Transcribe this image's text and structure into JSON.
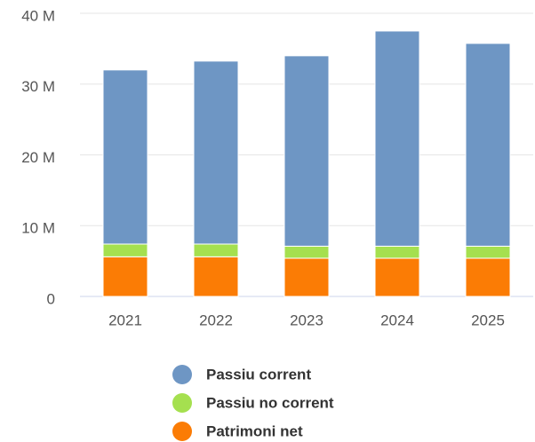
{
  "chart_data": {
    "type": "stacked_bar",
    "categories": [
      "2021",
      "2022",
      "2023",
      "2024",
      "2025"
    ],
    "series": [
      {
        "name": "Passiu corrent",
        "color": "#6e96c4",
        "values": [
          24.6,
          25.85,
          26.9,
          30.4,
          28.65
        ]
      },
      {
        "name": "Passiu no corrent",
        "color": "#a5e04f",
        "values": [
          1.8,
          1.8,
          1.7,
          1.7,
          1.7
        ]
      },
      {
        "name": "Patrimoni net",
        "color": "#fb7c05",
        "values": [
          5.6,
          5.6,
          5.4,
          5.4,
          5.4
        ]
      }
    ],
    "ylim": [
      0,
      40
    ],
    "yticks": [
      0,
      {
        "value": 10,
        "label": "10 M"
      },
      {
        "value": 20,
        "label": "20 M"
      },
      {
        "value": 30,
        "label": "30 M"
      },
      {
        "value": 40,
        "label": "40 M"
      }
    ],
    "grid": true
  }
}
